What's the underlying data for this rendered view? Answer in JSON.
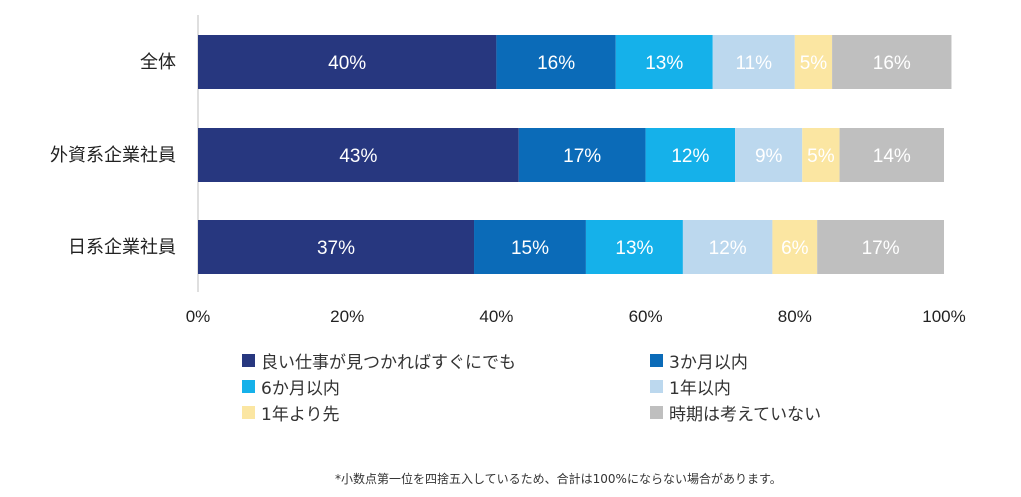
{
  "chart_data": {
    "type": "bar",
    "orientation": "horizontal",
    "stacked": true,
    "categories": [
      "全体",
      "外資系企業社員",
      "日系企業社員"
    ],
    "series": [
      {
        "name": "良い仕事が見つかればすぐにでも",
        "color": "#27377f",
        "values": [
          40,
          43,
          37
        ],
        "labels": [
          "40%",
          "43%",
          "37%"
        ],
        "label_color": "#ffffff"
      },
      {
        "name": "3か月以内",
        "color": "#0b6bb8",
        "values": [
          16,
          17,
          15
        ],
        "labels": [
          "16%",
          "17%",
          "15%"
        ],
        "label_color": "#ffffff"
      },
      {
        "name": "6か月以内",
        "color": "#15b1ea",
        "values": [
          13,
          12,
          13
        ],
        "labels": [
          "13%",
          "12%",
          "13%"
        ],
        "label_color": "#ffffff"
      },
      {
        "name": "1年以内",
        "color": "#bcd8ee",
        "values": [
          11,
          9,
          12
        ],
        "labels": [
          "11%",
          "9%",
          "12%"
        ],
        "label_color": "#ffffff"
      },
      {
        "name": "1年より先",
        "color": "#fbe6a2",
        "values": [
          5,
          5,
          6
        ],
        "labels": [
          "5%",
          "5%",
          "6%"
        ],
        "label_color": "#ffffff"
      },
      {
        "name": "時期は考えていない",
        "color": "#bfbfbf",
        "values": [
          16,
          14,
          17
        ],
        "labels": [
          "16%",
          "14%",
          "17%"
        ],
        "label_color": "#ffffff"
      }
    ],
    "xlim": [
      0,
      100
    ],
    "xticks": [
      "0%",
      "20%",
      "40%",
      "60%",
      "80%",
      "100%"
    ],
    "grid": false,
    "legend_position": "bottom"
  },
  "footnote": "*小数点第一位を四捨五入しているため、合計は100%にならない場合があります。"
}
